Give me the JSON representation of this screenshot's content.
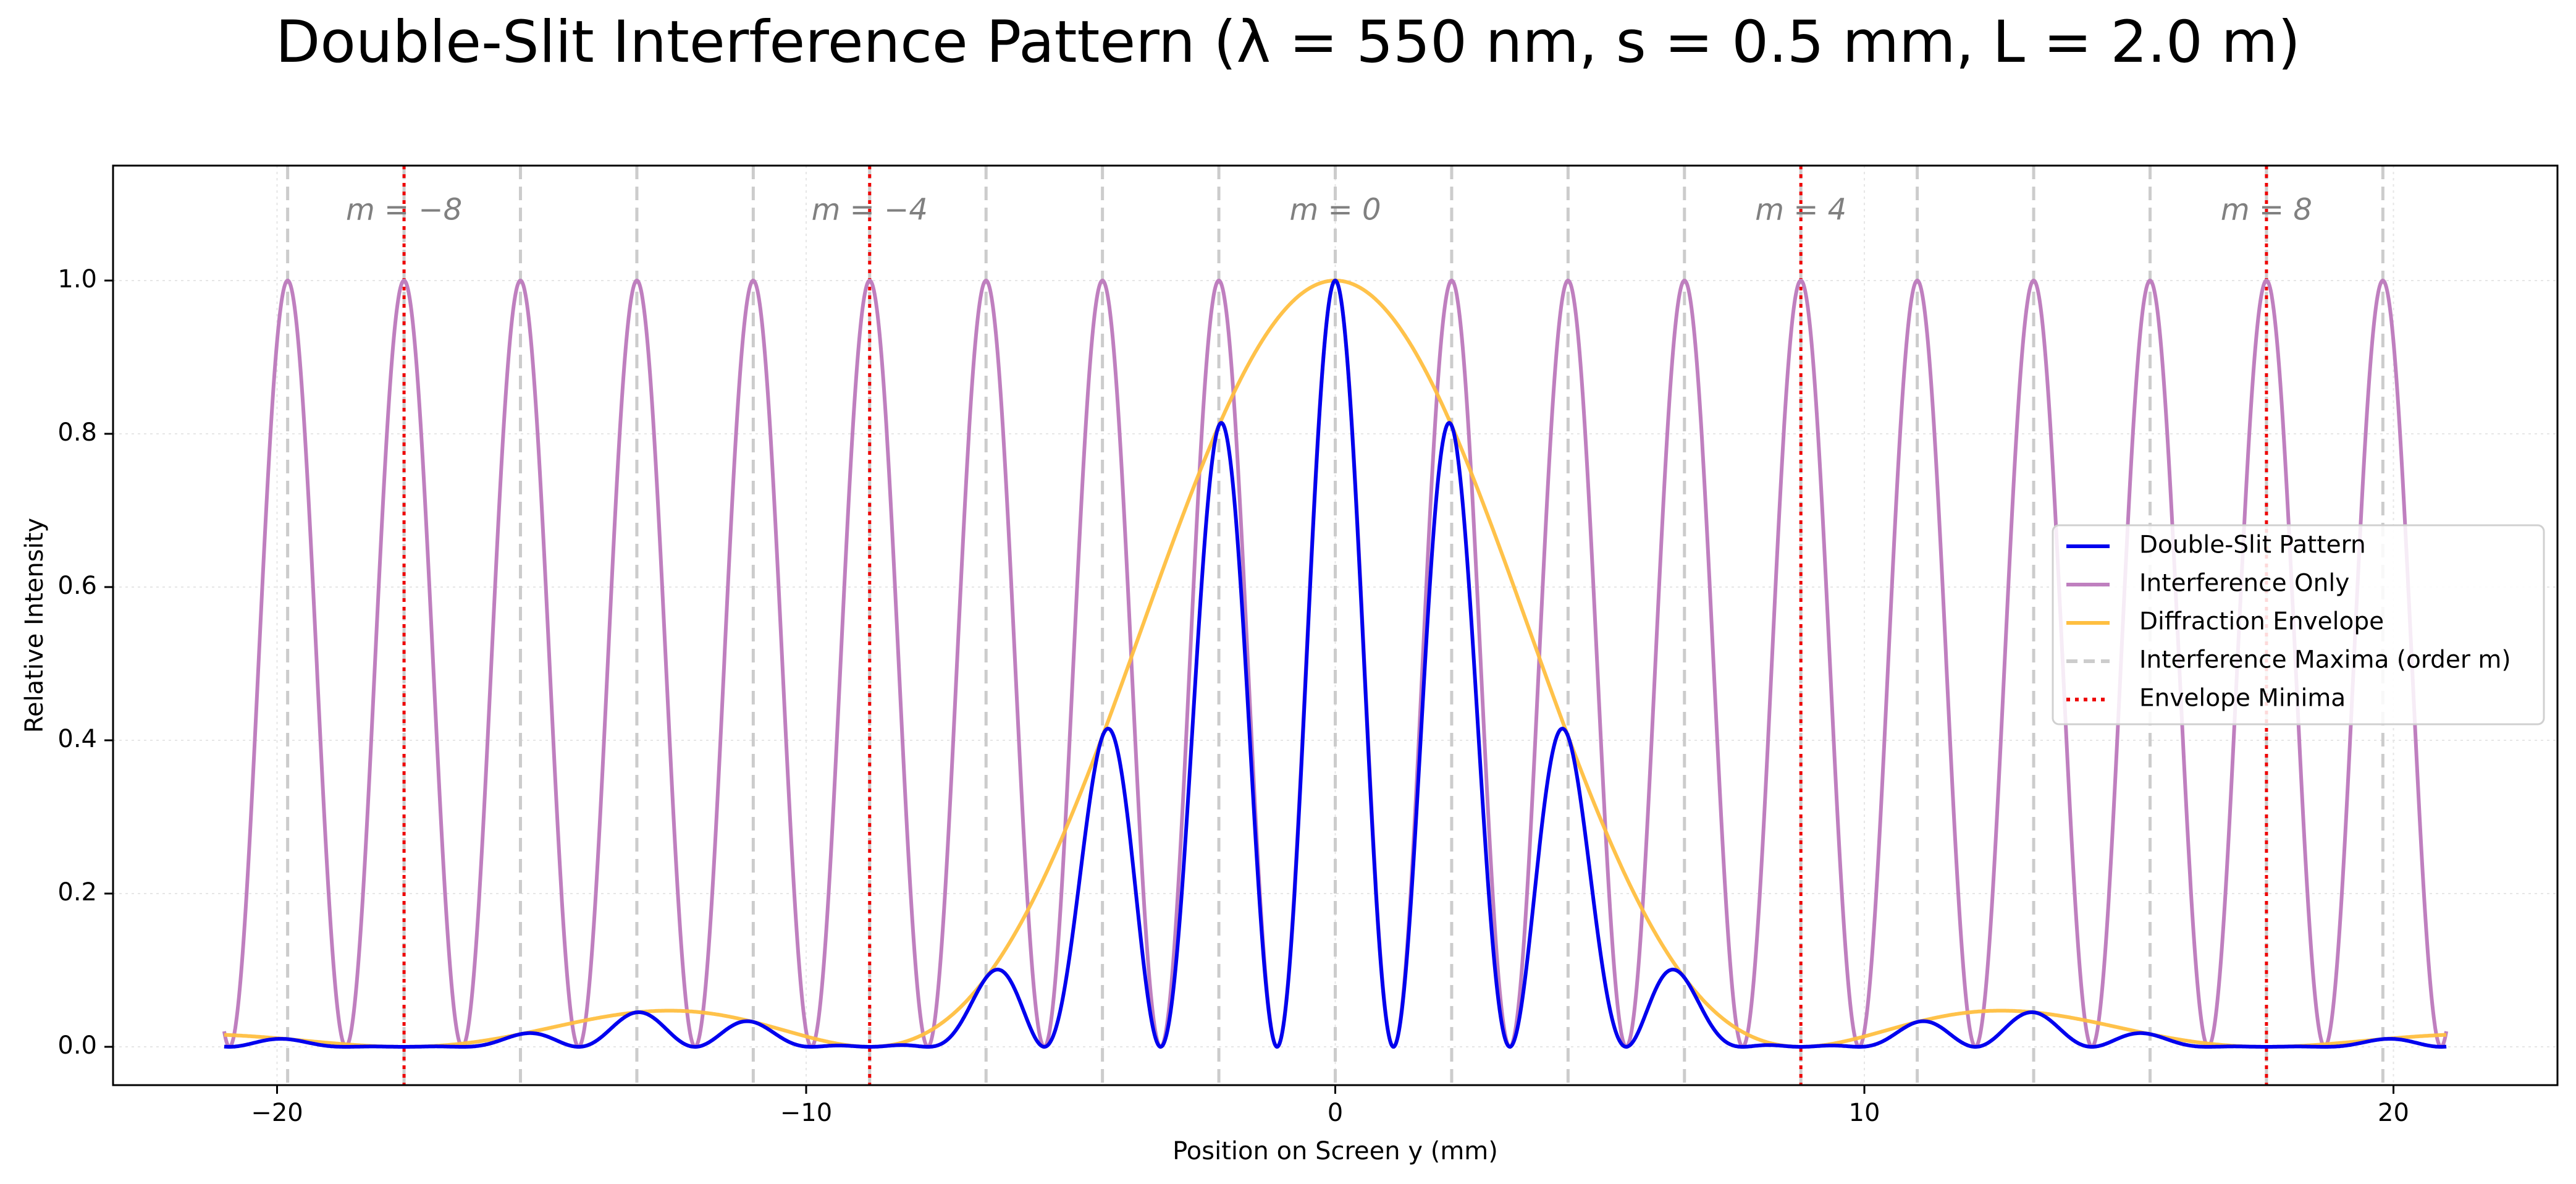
{
  "chart_data": {
    "type": "line",
    "title": "Double-Slit Interference Pattern (λ = 550 nm, s = 0.5 mm, L = 2.0 m)",
    "xlabel": "Position on Screen y (mm)",
    "ylabel": "Relative Intensity",
    "xlim": [
      -23.1,
      23.1
    ],
    "ylim": [
      -0.05,
      1.15
    ],
    "x_ticks": [
      -20,
      -10,
      0,
      10,
      20
    ],
    "x_tick_labels": [
      "−20",
      "−10",
      "0",
      "10",
      "20"
    ],
    "y_ticks": [
      0.0,
      0.2,
      0.4,
      0.6,
      0.8,
      1.0
    ],
    "y_tick_labels": [
      "0.0",
      "0.2",
      "0.4",
      "0.6",
      "0.8",
      "1.0"
    ],
    "grid": true,
    "legend_position": "center-right",
    "x_range": [
      -21,
      21
    ],
    "fringe_spacing_mm": 2.2,
    "envelope_first_zero_mm": 8.8,
    "series": [
      {
        "name": "Double-Slit Pattern",
        "color": "#0000ee",
        "style": "solid",
        "kind": "double_slit"
      },
      {
        "name": "Interference Only",
        "color": "#bf7fbf",
        "style": "solid",
        "kind": "interference"
      },
      {
        "name": "Diffraction Envelope",
        "color": "#ffbf40",
        "style": "solid",
        "kind": "envelope"
      },
      {
        "name": "Interference Maxima (order m)",
        "color": "#cccccc",
        "style": "dashed",
        "kind": "maxima_lines"
      },
      {
        "name": "Envelope Minima",
        "color": "#ee0000",
        "style": "dotted",
        "kind": "minima_lines"
      }
    ],
    "maxima_positions": [
      -19.8,
      -17.6,
      -15.4,
      -13.2,
      -11.0,
      -8.8,
      -6.6,
      -4.4,
      -2.2,
      0,
      2.2,
      4.4,
      6.6,
      8.8,
      11.0,
      13.2,
      15.4,
      17.6,
      19.8
    ],
    "minima_positions": [
      -17.6,
      -8.8,
      8.8,
      17.6
    ],
    "order_labels": [
      {
        "x": -17.6,
        "text": "m = −8"
      },
      {
        "x": -8.8,
        "text": "m = −4"
      },
      {
        "x": 0,
        "text": "m = 0"
      },
      {
        "x": 8.8,
        "text": "m = 4"
      },
      {
        "x": 17.6,
        "text": "m = 8"
      }
    ],
    "order_label_y": 1.09
  }
}
